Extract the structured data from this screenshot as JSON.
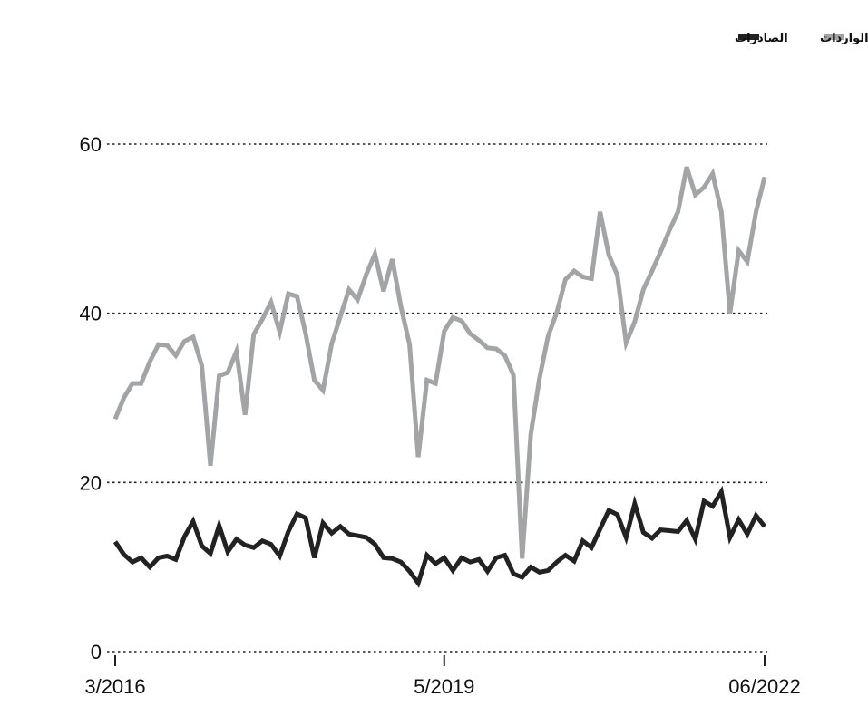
{
  "chart_data": {
    "type": "line",
    "title": "",
    "xlabel": "",
    "ylabel": "",
    "ylim": [
      0,
      60
    ],
    "y_ticks": [
      0,
      20,
      40,
      60
    ],
    "x_tick_labels": [
      "3/2016",
      "5/2019",
      "06/2022"
    ],
    "grid": "horizontal dotted",
    "legend_position": "top-right",
    "x": [
      "2016-03",
      "2016-04",
      "2016-05",
      "2016-06",
      "2016-07",
      "2016-08",
      "2016-09",
      "2016-10",
      "2016-11",
      "2016-12",
      "2017-01",
      "2017-02",
      "2017-03",
      "2017-04",
      "2017-05",
      "2017-06",
      "2017-07",
      "2017-08",
      "2017-09",
      "2017-10",
      "2017-11",
      "2017-12",
      "2018-01",
      "2018-02",
      "2018-03",
      "2018-04",
      "2018-05",
      "2018-06",
      "2018-07",
      "2018-08",
      "2018-09",
      "2018-10",
      "2018-11",
      "2018-12",
      "2019-01",
      "2019-02",
      "2019-03",
      "2019-04",
      "2019-05",
      "2019-06",
      "2019-07",
      "2019-08",
      "2019-09",
      "2019-10",
      "2019-11",
      "2019-12",
      "2020-01",
      "2020-02",
      "2020-03",
      "2020-04",
      "2020-05",
      "2020-06",
      "2020-07",
      "2020-08",
      "2020-09",
      "2020-10",
      "2020-11",
      "2020-12",
      "2021-01",
      "2021-02",
      "2021-03",
      "2021-04",
      "2021-05",
      "2021-06",
      "2021-07",
      "2021-08",
      "2021-09",
      "2021-10",
      "2021-11",
      "2021-12",
      "2022-01",
      "2022-02",
      "2022-03",
      "2022-04",
      "2022-05",
      "2022-06"
    ],
    "series": [
      {
        "name": "الواردات",
        "color": "#a3a4a6",
        "values": [
          27.5,
          30,
          31.7,
          31.7,
          34.3,
          36.3,
          36.2,
          35,
          36.7,
          37.2,
          33.8,
          22,
          32.6,
          33,
          35.5,
          28,
          37.5,
          39.3,
          41.3,
          37.8,
          42.3,
          42,
          37.6,
          32.1,
          30.9,
          36.4,
          39.6,
          42.8,
          41.6,
          44.6,
          47,
          42.6,
          46.4,
          40.8,
          36.3,
          23,
          32.1,
          31.7,
          37.9,
          39.5,
          39.1,
          37.6,
          36.8,
          35.9,
          35.8,
          35,
          32.7,
          11,
          25.7,
          32.3,
          37.3,
          40.1,
          44,
          45,
          44.3,
          44.1,
          52,
          46.9,
          44.5,
          36.5,
          39,
          42.8,
          45,
          47.3,
          49.8,
          52,
          57.3,
          54,
          54.9,
          56.5,
          52,
          40,
          47.4,
          46.1,
          52,
          56.1
        ]
      },
      {
        "name": "الصادرات",
        "color": "#222222",
        "values": [
          13,
          11.5,
          10.6,
          11.1,
          10,
          11.1,
          11.3,
          10.9,
          13.6,
          15.4,
          12.5,
          11.6,
          14.9,
          11.8,
          13.3,
          12.6,
          12.3,
          13.1,
          12.7,
          11.3,
          14.2,
          16.3,
          15.8,
          11.1,
          15.2,
          14,
          14.8,
          13.9,
          13.7,
          13.5,
          12.7,
          11.1,
          11,
          10.6,
          9.5,
          8.1,
          11.4,
          10.4,
          11.1,
          9.6,
          11.1,
          10.6,
          10.9,
          9.5,
          11.1,
          11.4,
          9.2,
          8.8,
          10,
          9.4,
          9.6,
          10.6,
          11.4,
          10.7,
          13.1,
          12.3,
          14.5,
          16.7,
          16.2,
          13.5,
          17.5,
          14.1,
          13.4,
          14.4,
          14.3,
          14.2,
          15.5,
          13.3,
          17.8,
          17.2,
          18.9,
          13.5,
          15.6,
          13.9,
          16.1,
          14.8
        ]
      }
    ]
  }
}
